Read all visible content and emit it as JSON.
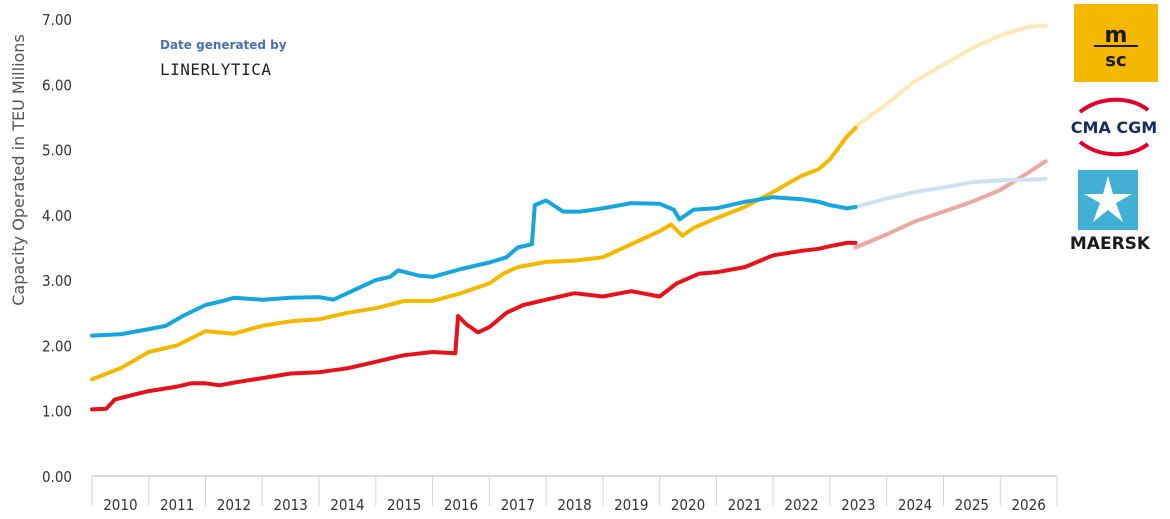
{
  "credit": {
    "line1": "Date generated by",
    "line2": "LINERLYTICA"
  },
  "logos": {
    "msc": "msc",
    "cma": "CMA CGM",
    "maersk": "MAERSK"
  },
  "chart_data": {
    "type": "line",
    "ylabel": "Capacity Operated in TEU Millions",
    "xlabel": "",
    "ylim": [
      0,
      7
    ],
    "yticks": [
      "0.00",
      "1.00",
      "2.00",
      "3.00",
      "4.00",
      "5.00",
      "6.00",
      "7.00"
    ],
    "xlim": [
      2010,
      2027
    ],
    "xticks": [
      "2010",
      "2011",
      "2012",
      "2013",
      "2014",
      "2015",
      "2016",
      "2017",
      "2018",
      "2019",
      "2020",
      "2021",
      "2022",
      "2023",
      "2024",
      "2025",
      "2026"
    ],
    "grid": false,
    "series": [
      {
        "logo": "msc",
        "color": "#f5b800",
        "projection_color": "#fde9b5",
        "actual": [
          [
            2010.0,
            1.48
          ],
          [
            2010.5,
            1.65
          ],
          [
            2011.0,
            1.9
          ],
          [
            2011.5,
            2.0
          ],
          [
            2012.0,
            2.22
          ],
          [
            2012.5,
            2.18
          ],
          [
            2013.0,
            2.3
          ],
          [
            2013.5,
            2.37
          ],
          [
            2014.0,
            2.4
          ],
          [
            2014.5,
            2.5
          ],
          [
            2015.0,
            2.57
          ],
          [
            2015.5,
            2.68
          ],
          [
            2016.0,
            2.68
          ],
          [
            2016.5,
            2.8
          ],
          [
            2017.0,
            2.95
          ],
          [
            2017.25,
            3.1
          ],
          [
            2017.5,
            3.2
          ],
          [
            2018.0,
            3.28
          ],
          [
            2018.5,
            3.3
          ],
          [
            2019.0,
            3.35
          ],
          [
            2019.5,
            3.55
          ],
          [
            2020.0,
            3.75
          ],
          [
            2020.2,
            3.85
          ],
          [
            2020.4,
            3.68
          ],
          [
            2020.6,
            3.8
          ],
          [
            2021.0,
            3.95
          ],
          [
            2021.5,
            4.12
          ],
          [
            2022.0,
            4.35
          ],
          [
            2022.5,
            4.6
          ],
          [
            2022.8,
            4.7
          ],
          [
            2023.0,
            4.85
          ],
          [
            2023.3,
            5.2
          ],
          [
            2023.45,
            5.33
          ]
        ],
        "projection": [
          [
            2023.45,
            5.35
          ],
          [
            2024.0,
            5.7
          ],
          [
            2024.5,
            6.05
          ],
          [
            2025.0,
            6.3
          ],
          [
            2025.5,
            6.55
          ],
          [
            2026.0,
            6.75
          ],
          [
            2026.5,
            6.88
          ],
          [
            2026.8,
            6.9
          ]
        ]
      },
      {
        "logo": "cma-cgm",
        "color": "#e8111a",
        "projection_color": "#eba9a5",
        "actual": [
          [
            2010.0,
            1.02
          ],
          [
            2010.25,
            1.03
          ],
          [
            2010.4,
            1.17
          ],
          [
            2010.75,
            1.25
          ],
          [
            2011.0,
            1.3
          ],
          [
            2011.5,
            1.37
          ],
          [
            2011.75,
            1.42
          ],
          [
            2012.0,
            1.42
          ],
          [
            2012.25,
            1.39
          ],
          [
            2012.5,
            1.43
          ],
          [
            2013.0,
            1.5
          ],
          [
            2013.5,
            1.57
          ],
          [
            2014.0,
            1.59
          ],
          [
            2014.5,
            1.65
          ],
          [
            2015.0,
            1.75
          ],
          [
            2015.5,
            1.85
          ],
          [
            2016.0,
            1.9
          ],
          [
            2016.4,
            1.88
          ],
          [
            2016.45,
            2.45
          ],
          [
            2016.6,
            2.32
          ],
          [
            2016.8,
            2.2
          ],
          [
            2017.0,
            2.28
          ],
          [
            2017.3,
            2.5
          ],
          [
            2017.6,
            2.62
          ],
          [
            2018.0,
            2.7
          ],
          [
            2018.5,
            2.8
          ],
          [
            2019.0,
            2.75
          ],
          [
            2019.5,
            2.83
          ],
          [
            2020.0,
            2.75
          ],
          [
            2020.3,
            2.95
          ],
          [
            2020.7,
            3.1
          ],
          [
            2021.0,
            3.12
          ],
          [
            2021.5,
            3.2
          ],
          [
            2022.0,
            3.38
          ],
          [
            2022.5,
            3.45
          ],
          [
            2022.8,
            3.48
          ],
          [
            2023.0,
            3.52
          ],
          [
            2023.3,
            3.57
          ],
          [
            2023.45,
            3.57
          ]
        ],
        "projection": [
          [
            2023.45,
            3.5
          ],
          [
            2024.0,
            3.7
          ],
          [
            2024.5,
            3.9
          ],
          [
            2025.0,
            4.05
          ],
          [
            2025.5,
            4.2
          ],
          [
            2026.0,
            4.38
          ],
          [
            2026.5,
            4.65
          ],
          [
            2026.8,
            4.82
          ]
        ]
      },
      {
        "logo": "maersk",
        "color": "#15a5df",
        "projection_color": "#cfe0f3",
        "actual": [
          [
            2010.0,
            2.15
          ],
          [
            2010.5,
            2.17
          ],
          [
            2011.0,
            2.25
          ],
          [
            2011.3,
            2.3
          ],
          [
            2011.6,
            2.45
          ],
          [
            2012.0,
            2.62
          ],
          [
            2012.3,
            2.68
          ],
          [
            2012.5,
            2.73
          ],
          [
            2013.0,
            2.7
          ],
          [
            2013.5,
            2.73
          ],
          [
            2014.0,
            2.74
          ],
          [
            2014.25,
            2.7
          ],
          [
            2014.5,
            2.8
          ],
          [
            2015.0,
            3.0
          ],
          [
            2015.25,
            3.05
          ],
          [
            2015.4,
            3.15
          ],
          [
            2015.75,
            3.07
          ],
          [
            2016.0,
            3.05
          ],
          [
            2016.5,
            3.17
          ],
          [
            2017.0,
            3.27
          ],
          [
            2017.3,
            3.35
          ],
          [
            2017.5,
            3.5
          ],
          [
            2017.75,
            3.55
          ],
          [
            2017.8,
            4.15
          ],
          [
            2018.0,
            4.22
          ],
          [
            2018.3,
            4.05
          ],
          [
            2018.6,
            4.05
          ],
          [
            2019.0,
            4.1
          ],
          [
            2019.5,
            4.18
          ],
          [
            2020.0,
            4.17
          ],
          [
            2020.25,
            4.08
          ],
          [
            2020.35,
            3.93
          ],
          [
            2020.6,
            4.08
          ],
          [
            2021.0,
            4.1
          ],
          [
            2021.5,
            4.2
          ],
          [
            2022.0,
            4.27
          ],
          [
            2022.5,
            4.24
          ],
          [
            2022.8,
            4.2
          ],
          [
            2023.0,
            4.15
          ],
          [
            2023.3,
            4.1
          ],
          [
            2023.45,
            4.12
          ]
        ],
        "projection": [
          [
            2023.45,
            4.12
          ],
          [
            2024.0,
            4.25
          ],
          [
            2024.5,
            4.35
          ],
          [
            2025.0,
            4.42
          ],
          [
            2025.5,
            4.5
          ],
          [
            2026.0,
            4.53
          ],
          [
            2026.5,
            4.54
          ],
          [
            2026.8,
            4.55
          ]
        ]
      }
    ]
  }
}
